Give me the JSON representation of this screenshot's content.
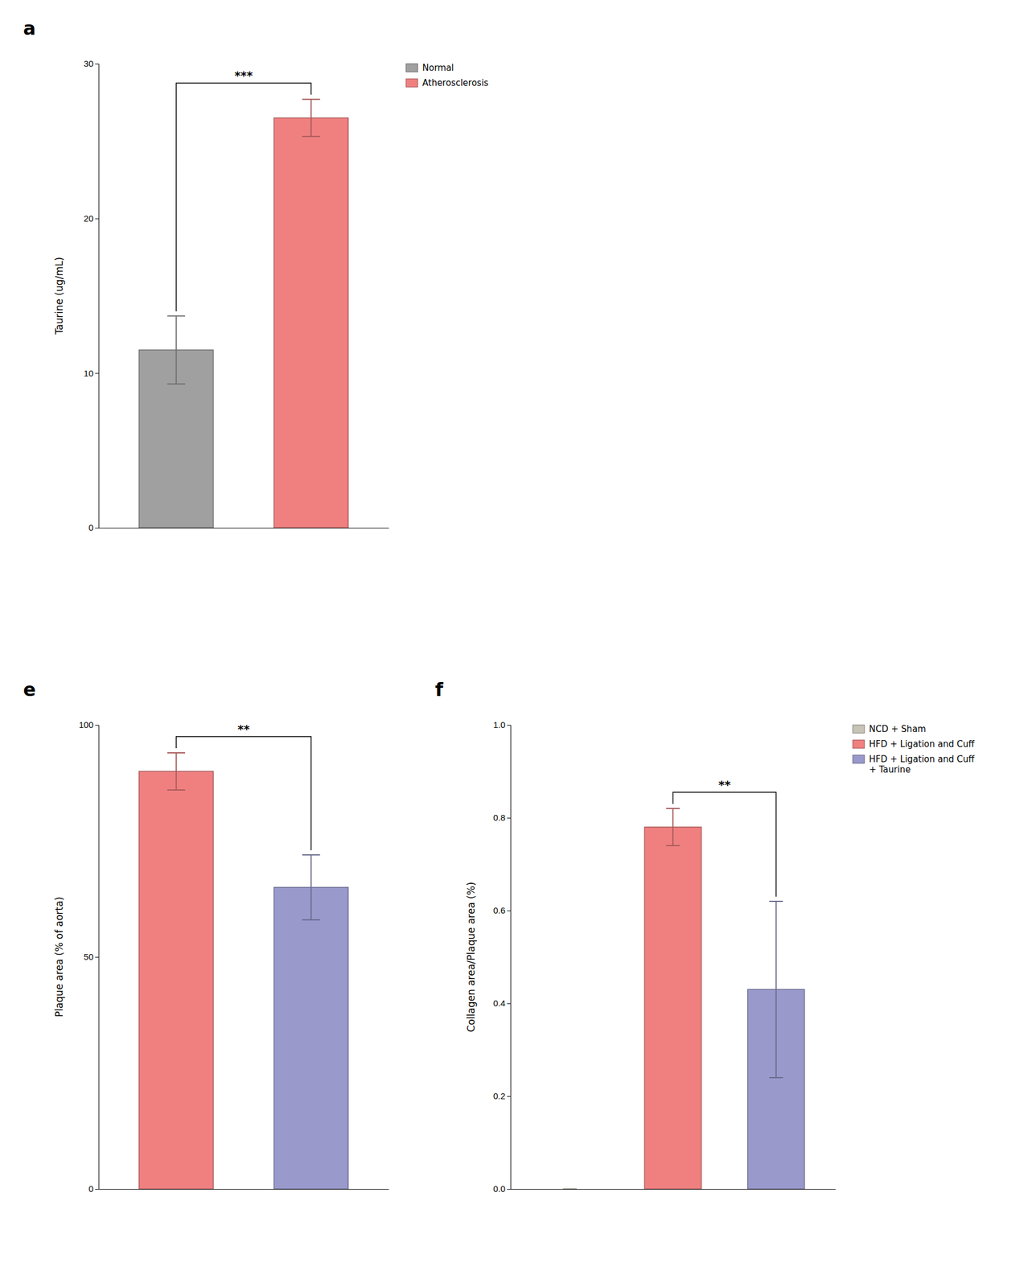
{
  "chart_data": [
    {
      "type": "bar",
      "title": "a",
      "categories": [
        "Normal",
        "Atherosclerosis"
      ],
      "values": [
        11.5,
        26.5
      ],
      "errors": [
        2.2,
        1.2
      ],
      "colors": [
        "#a0a0a0",
        "#f08080"
      ],
      "ylabel": "Taurine (ug/mL)",
      "ylim": [
        0,
        30
      ],
      "yticks": [
        0,
        10,
        20,
        30
      ],
      "annotations": [
        {
          "text": "***",
          "between": [
            0,
            1
          ]
        }
      ],
      "legend": "right",
      "tick_labels": "y",
      "grid": false
    },
    {
      "type": "bar",
      "title": "e",
      "categories": [
        null,
        null
      ],
      "values": [
        90.0,
        65.0
      ],
      "errors": [
        4.0,
        7.0
      ],
      "colors": [
        "#f08080",
        "#9999cc"
      ],
      "ylabel": "Plaque area (% of aorta)",
      "ylim": [
        0,
        100
      ],
      "yticks": [
        0,
        50,
        100
      ],
      "annotations": [
        {
          "text": "**",
          "between": [
            0,
            1
          ]
        }
      ],
      "tick_labels": "y",
      "grid": false
    },
    {
      "type": "bar",
      "title": "f",
      "categories": [
        "NCD + Sham",
        "HFD + Ligation and Cuff",
        "HFD + Ligation and Cuff\n+ Taurine"
      ],
      "values": [
        0.0,
        0.78,
        0.43
      ],
      "errors": [
        0.0,
        0.04,
        0.19
      ],
      "colors": [
        "#c8c4b8",
        "#f08080",
        "#9999cc"
      ],
      "ylabel": "Collagen area/Plaque area (%)",
      "ylim": [
        0.0,
        1.0
      ],
      "yticks": [
        {
          "value": 0.0,
          "label": "0.0"
        },
        0.2,
        0.4,
        0.6,
        0.8,
        {
          "value": 1.0,
          "label": "1.0"
        }
      ],
      "annotations": [
        {
          "text": "**",
          "between": [
            1,
            2
          ]
        }
      ],
      "legend": "right",
      "tick_labels": "y",
      "grid": false
    }
  ]
}
